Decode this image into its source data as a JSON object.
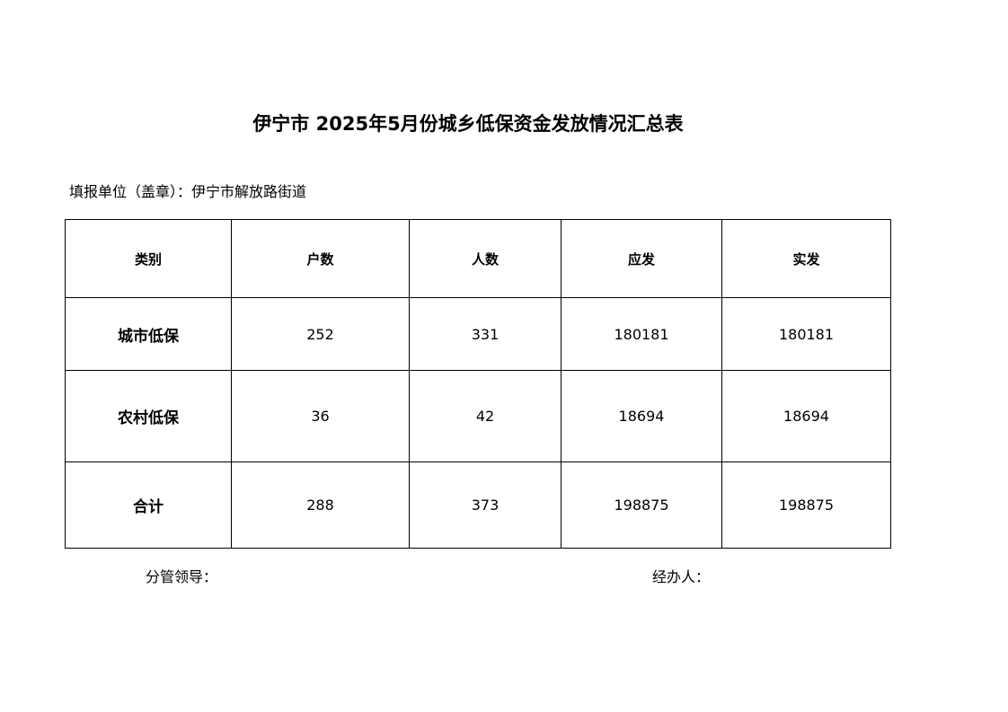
{
  "title": "伊宁市 2025年5月份城乡低保资金发放情况汇总表",
  "reporting_unit": "填报单位（盖章）：伊宁市解放路街道",
  "table": {
    "headers": [
      "类别",
      "户数",
      "人数",
      "应发",
      "实发"
    ],
    "rows": [
      [
        "城市低保",
        "252",
        "331",
        "180181",
        "180181"
      ],
      [
        "农村低保",
        "36",
        "42",
        "18694",
        "18694"
      ],
      [
        "合计",
        "288",
        "373",
        "198875",
        "198875"
      ]
    ]
  },
  "footer": {
    "supervisor_label": "分管领导：",
    "handler_label": "经办人："
  }
}
